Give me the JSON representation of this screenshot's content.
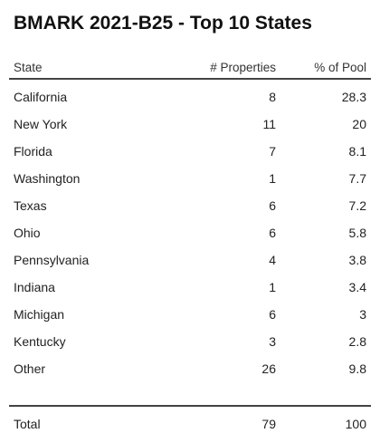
{
  "title": "BMARK 2021-B25 - Top 10 States",
  "columns": {
    "state": "State",
    "properties": "# Properties",
    "pool": "% of Pool"
  },
  "rows": [
    {
      "state": "California",
      "properties": "8",
      "pool": "28.3"
    },
    {
      "state": "New York",
      "properties": "11",
      "pool": "20"
    },
    {
      "state": "Florida",
      "properties": "7",
      "pool": "8.1"
    },
    {
      "state": "Washington",
      "properties": "1",
      "pool": "7.7"
    },
    {
      "state": "Texas",
      "properties": "6",
      "pool": "7.2"
    },
    {
      "state": "Ohio",
      "properties": "6",
      "pool": "5.8"
    },
    {
      "state": "Pennsylvania",
      "properties": "4",
      "pool": "3.8"
    },
    {
      "state": "Indiana",
      "properties": "1",
      "pool": "3.4"
    },
    {
      "state": "Michigan",
      "properties": "6",
      "pool": "3"
    },
    {
      "state": "Kentucky",
      "properties": "3",
      "pool": "2.8"
    },
    {
      "state": "Other",
      "properties": "26",
      "pool": "9.8"
    }
  ],
  "total": {
    "state": "Total",
    "properties": "79",
    "pool": "100"
  }
}
